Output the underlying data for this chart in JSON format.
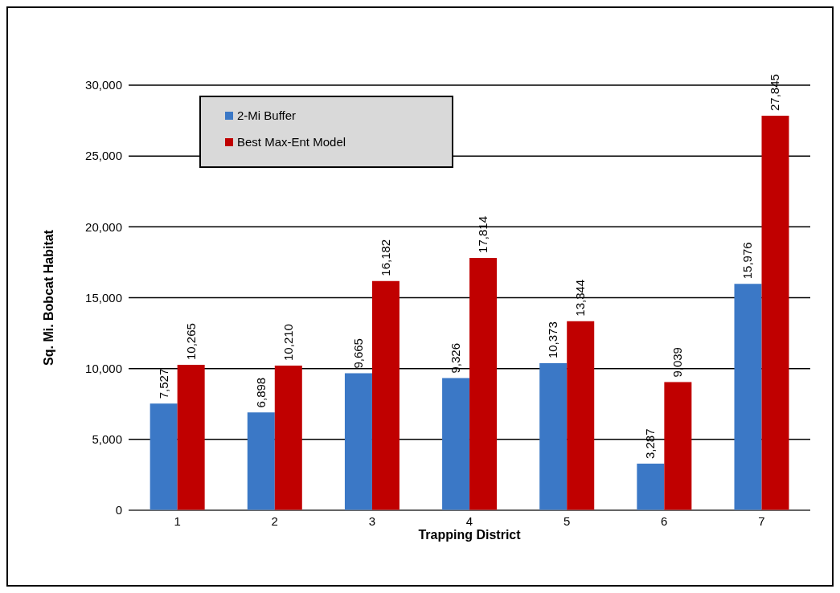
{
  "chart_data": {
    "type": "bar",
    "xlabel": "Trapping District",
    "ylabel": "Sq. Mi. Bobcat Habitat",
    "categories": [
      "1",
      "2",
      "3",
      "4",
      "5",
      "6",
      "7"
    ],
    "series": [
      {
        "name": "2-Mi Buffer",
        "color": "#3b78c6",
        "values": [
          7527,
          6898,
          9665,
          9326,
          10373,
          3287,
          15976
        ],
        "value_labels": [
          "7,527",
          "6,898",
          "9,665",
          "9,326",
          "10,373",
          "3,287",
          "15,976"
        ]
      },
      {
        "name": "Best Max-Ent Model",
        "color": "#c00000",
        "values": [
          10265,
          10210,
          16182,
          17814,
          13344,
          9039,
          27845
        ],
        "value_labels": [
          "10,265",
          "10,210",
          "16,182",
          "17,814",
          "13,344",
          "9,039",
          "27,845"
        ]
      }
    ],
    "ylim": [
      0,
      30000
    ],
    "yticks": [
      {
        "value": 0,
        "label": "0"
      },
      {
        "value": 5000,
        "label": "5,000"
      },
      {
        "value": 10000,
        "label": "10,000"
      },
      {
        "value": 15000,
        "label": "15,000"
      },
      {
        "value": 20000,
        "label": "20,000"
      },
      {
        "value": 25000,
        "label": "25,000"
      },
      {
        "value": 30000,
        "label": "30,000"
      }
    ],
    "grid": "y",
    "legend": "top left"
  }
}
